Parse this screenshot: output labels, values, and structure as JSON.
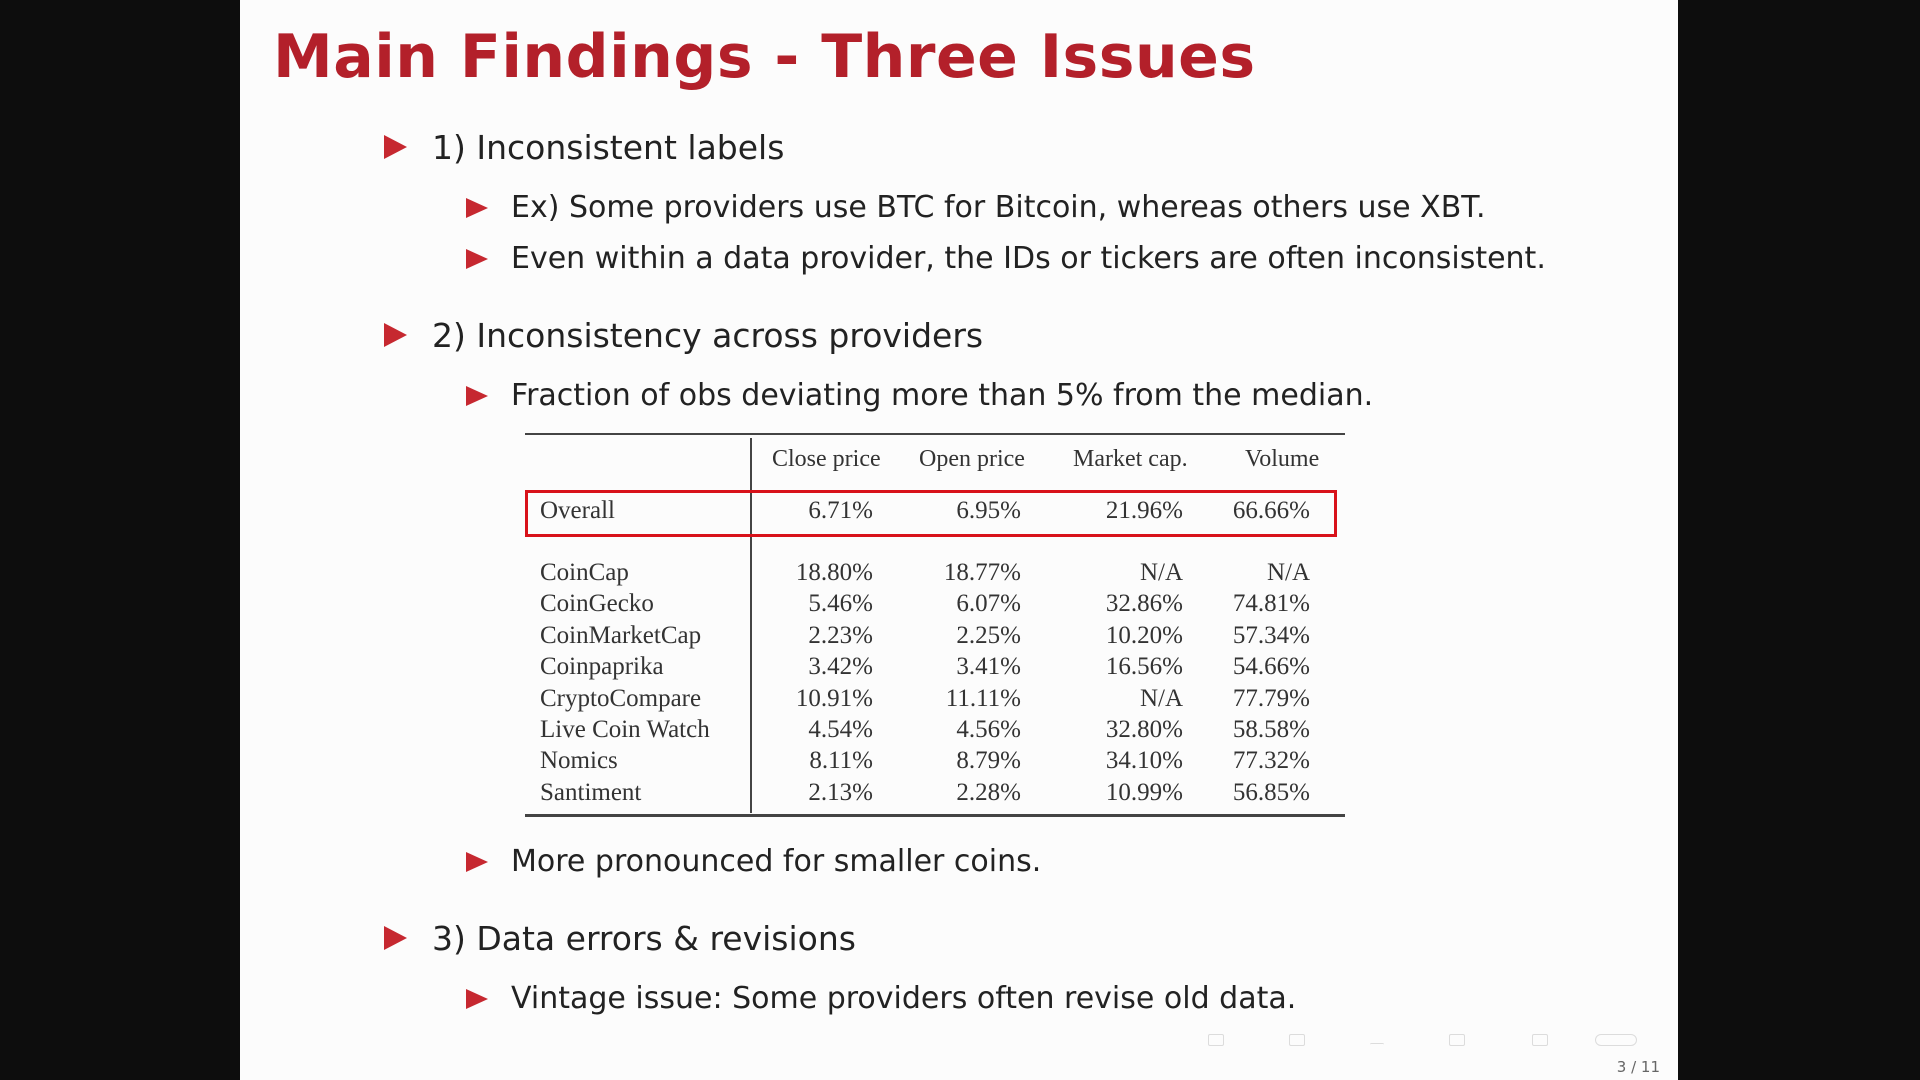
{
  "slide": {
    "title": "Main Findings - Three Issues",
    "page": "3 / 11",
    "colors": {
      "title": "#b3202a",
      "bullet": "#c62830",
      "highlight": "#d8121a"
    }
  },
  "bullets": [
    {
      "text": "1) Inconsistent labels"
    },
    {
      "text": "Ex) Some providers use BTC for Bitcoin, whereas others use XBT."
    },
    {
      "text": "Even within a data provider, the IDs or tickers are often inconsistent."
    },
    {
      "text": "2) Inconsistency across providers"
    },
    {
      "text": "Fraction of obs deviating more than 5% from the median."
    },
    {
      "text": "More pronounced for smaller coins."
    },
    {
      "text": "3) Data errors & revisions"
    },
    {
      "text": "Vintage issue: Some providers often revise old data."
    }
  ],
  "table": {
    "columns": [
      "Close price",
      "Open price",
      "Market cap.",
      "Volume"
    ],
    "overall": {
      "label": "Overall",
      "values": [
        "6.71%",
        "6.95%",
        "21.96%",
        "66.66%"
      ]
    },
    "rows": [
      {
        "label": "CoinCap",
        "values": [
          "18.80%",
          "18.77%",
          "N/A",
          "N/A"
        ]
      },
      {
        "label": "CoinGecko",
        "values": [
          "5.46%",
          "6.07%",
          "32.86%",
          "74.81%"
        ]
      },
      {
        "label": "CoinMarketCap",
        "values": [
          "2.23%",
          "2.25%",
          "10.20%",
          "57.34%"
        ]
      },
      {
        "label": "Coinpaprika",
        "values": [
          "3.42%",
          "3.41%",
          "16.56%",
          "54.66%"
        ]
      },
      {
        "label": "CryptoCompare",
        "values": [
          "10.91%",
          "11.11%",
          "N/A",
          "77.79%"
        ]
      },
      {
        "label": "Live Coin Watch",
        "values": [
          "4.54%",
          "4.56%",
          "32.80%",
          "58.58%"
        ]
      },
      {
        "label": "Nomics",
        "values": [
          "8.11%",
          "8.79%",
          "34.10%",
          "77.32%"
        ]
      },
      {
        "label": "Santiment",
        "values": [
          "2.13%",
          "2.28%",
          "10.99%",
          "56.85%"
        ]
      }
    ]
  }
}
